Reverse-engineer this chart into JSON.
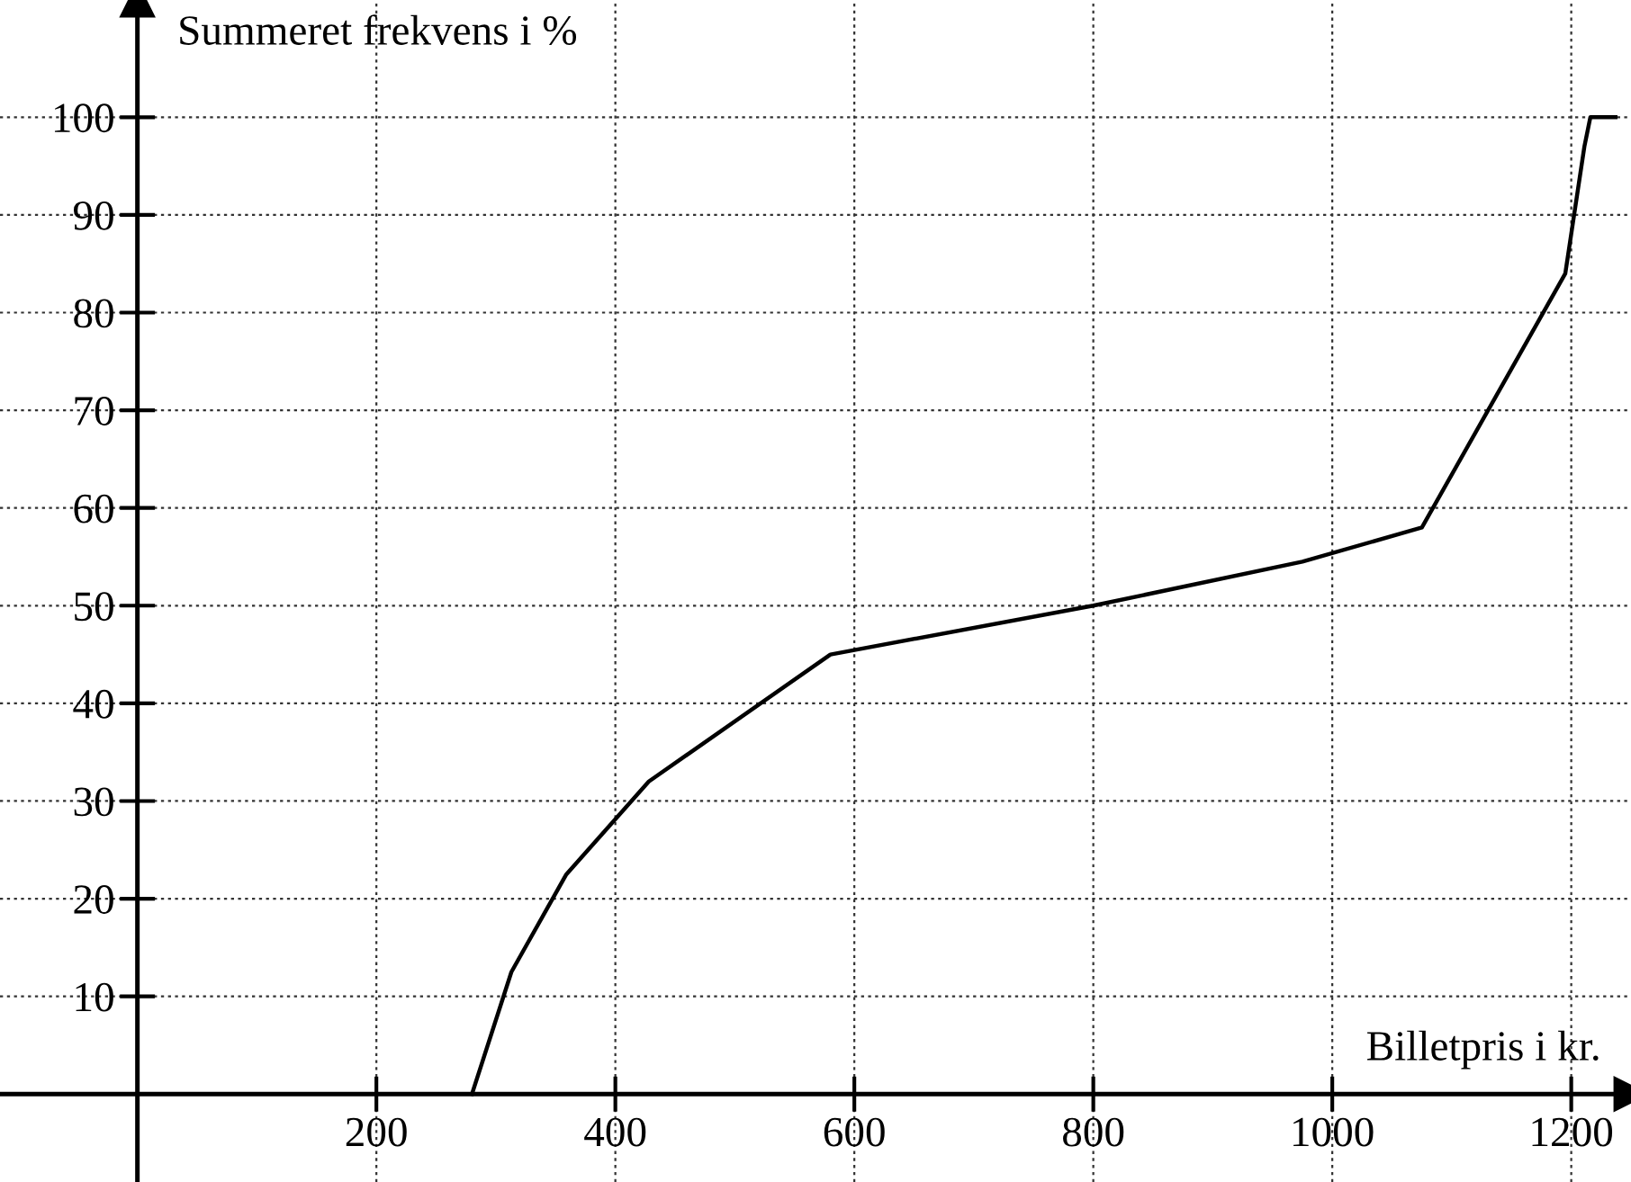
{
  "chart_data": {
    "type": "line",
    "xlabel": "Billetpris i kr.",
    "ylabel": "Summeret frekvens i %",
    "x": [
      280,
      313,
      359,
      428,
      580,
      800,
      975,
      1075,
      1195,
      1211,
      1216,
      1237
    ],
    "series": [
      {
        "color": "#000000",
        "values": [
          0,
          12.5,
          22.5,
          32,
          45,
          50,
          54.5,
          58,
          84,
          97,
          100,
          100
        ]
      }
    ],
    "xlim": [
      -115,
      1250
    ],
    "ylim": [
      -9,
      112
    ],
    "xticks": [
      200,
      400,
      600,
      800,
      1000,
      1200
    ],
    "yticks": [
      10,
      20,
      30,
      40,
      50,
      60,
      70,
      80,
      90,
      100
    ],
    "grid": true,
    "marker": "none",
    "line_style": "solid"
  }
}
